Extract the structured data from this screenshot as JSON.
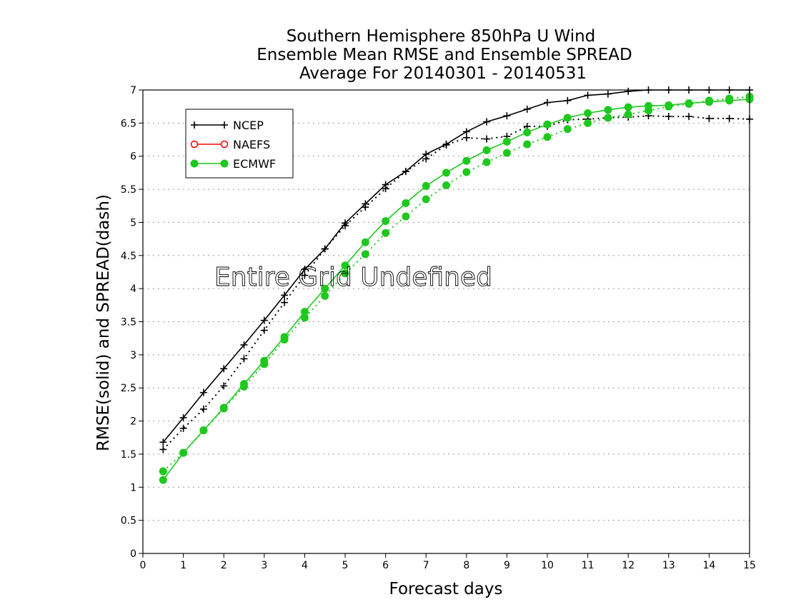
{
  "chart_data": {
    "type": "line",
    "title": [
      "Southern Hemisphere 850hPa U Wind",
      "Ensemble Mean RMSE and Ensemble SPREAD",
      "Average For 20140301 - 20140531"
    ],
    "xlabel": "Forecast days",
    "ylabel": "RMSE(solid) and SPREAD(dash)",
    "xlim": [
      0,
      15
    ],
    "ylim": [
      0,
      7
    ],
    "xticks": [
      "0",
      "1",
      "2",
      "3",
      "4",
      "5",
      "6",
      "7",
      "8",
      "9",
      "10",
      "11",
      "12",
      "13",
      "14",
      "15"
    ],
    "yticks": [
      "0",
      "0.5",
      "1",
      "1.5",
      "2",
      "2.5",
      "3",
      "3.5",
      "4",
      "4.5",
      "5",
      "5.5",
      "6",
      "6.5",
      "7"
    ],
    "grid": "horizontal dotted",
    "legend_position": "upper-left",
    "annotation": "Entire Grid Undefined",
    "x": [
      0.5,
      1,
      1.5,
      2,
      2.5,
      3,
      3.5,
      4,
      4.5,
      5,
      5.5,
      6,
      6.5,
      7,
      7.5,
      8,
      8.5,
      9,
      9.5,
      10,
      10.5,
      11,
      11.5,
      12,
      12.5,
      13,
      13.5,
      14,
      14.5,
      15
    ],
    "series": [
      {
        "name": "NCEP",
        "color": "#000000",
        "marker": "plus",
        "rmse": [
          1.68,
          2.05,
          2.43,
          2.79,
          3.15,
          3.52,
          3.9,
          4.29,
          4.6,
          4.99,
          5.28,
          5.57,
          5.77,
          6.03,
          6.18,
          6.37,
          6.52,
          6.61,
          6.71,
          6.81,
          6.84,
          6.92,
          6.94,
          6.98,
          7.0,
          7.0,
          7.0,
          7.0,
          7.0,
          7.0
        ],
        "spread": [
          1.57,
          1.89,
          2.18,
          2.53,
          2.94,
          3.37,
          3.79,
          4.2,
          4.6,
          4.95,
          5.23,
          5.51,
          5.77,
          5.96,
          6.17,
          6.28,
          6.26,
          6.3,
          6.45,
          6.45,
          6.55,
          6.56,
          6.58,
          6.59,
          6.61,
          6.6,
          6.6,
          6.57,
          6.57,
          6.56
        ]
      },
      {
        "name": "NAEFS",
        "color": "#ff0000",
        "marker": "open-circle",
        "rmse": [],
        "spread": []
      },
      {
        "name": "ECMWF",
        "color": "#1ec81e",
        "marker": "filled-circle",
        "rmse": [
          1.11,
          1.52,
          1.86,
          2.2,
          2.56,
          2.91,
          3.27,
          3.65,
          4.0,
          4.35,
          4.7,
          5.02,
          5.29,
          5.55,
          5.75,
          5.93,
          6.09,
          6.22,
          6.36,
          6.48,
          6.58,
          6.65,
          6.7,
          6.74,
          6.76,
          6.77,
          6.8,
          6.82,
          6.84,
          6.86
        ],
        "spread": [
          1.24,
          1.52,
          1.86,
          2.19,
          2.52,
          2.86,
          3.23,
          3.56,
          3.89,
          4.23,
          4.52,
          4.84,
          5.09,
          5.35,
          5.56,
          5.76,
          5.91,
          6.05,
          6.18,
          6.29,
          6.41,
          6.5,
          6.58,
          6.63,
          6.69,
          6.75,
          6.79,
          6.84,
          6.87,
          6.9
        ]
      }
    ]
  }
}
